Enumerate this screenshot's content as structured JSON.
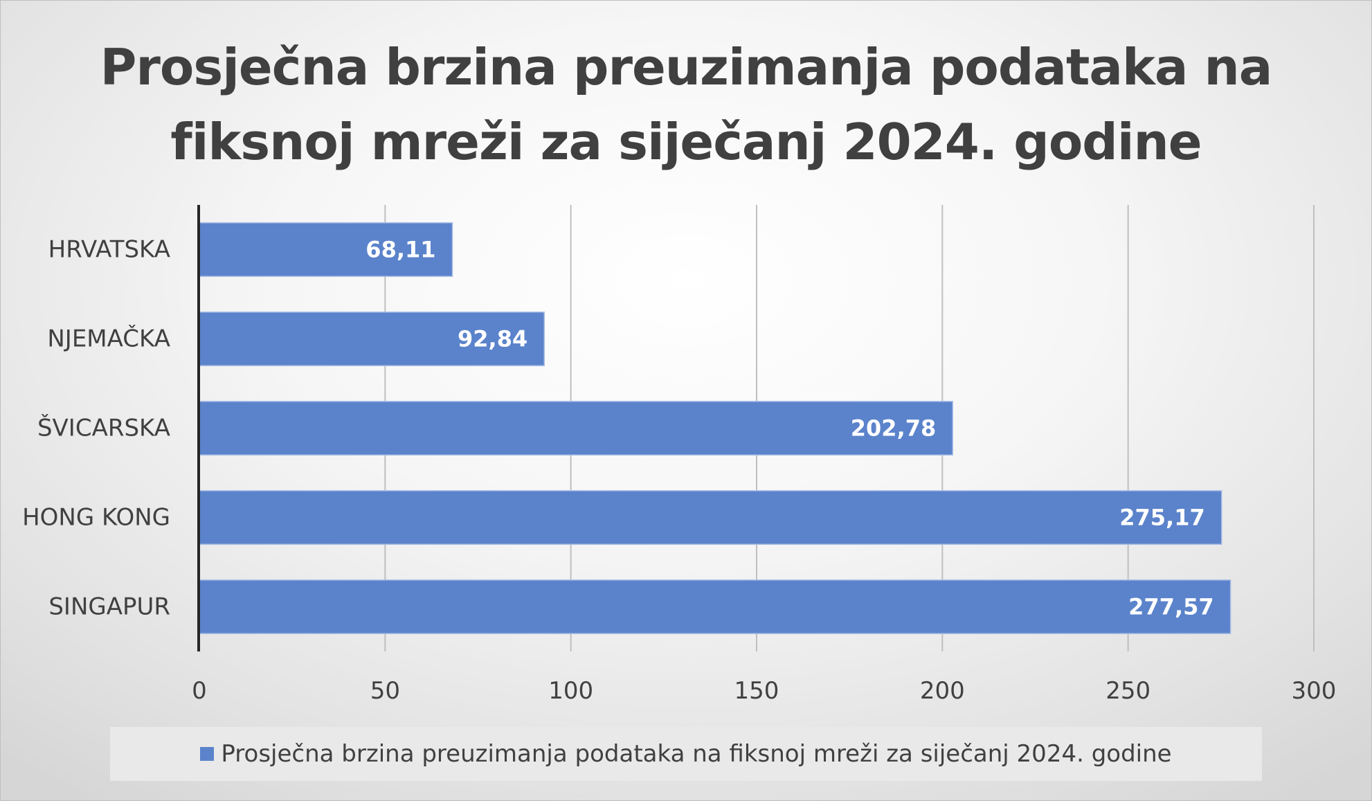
{
  "chart_data": {
    "type": "bar",
    "orientation": "horizontal",
    "title": "Prosječna brzina preuzimanja podataka na fiksnoj mreži za siječanj 2024. godine",
    "categories": [
      "HRVATSKA",
      "NJEMAČKA",
      "ŠVICARSKA",
      "HONG KONG",
      "SINGAPUR"
    ],
    "series": [
      {
        "name": "Prosječna brzina preuzimanja podataka na fiksnoj mreži za siječanj 2024. godine",
        "values": [
          68.11,
          92.84,
          202.78,
          275.17,
          277.57
        ],
        "labels": [
          "68,11",
          "92,84",
          "202,78",
          "275,17",
          "277,57"
        ]
      }
    ],
    "xlim": [
      0,
      300
    ],
    "xticks": [
      "0",
      "50",
      "100",
      "150",
      "200",
      "250",
      "300"
    ],
    "grid": true,
    "legend_position": "bottom",
    "colors": {
      "bar": "#5b83cb",
      "grid": "#bfbfbf",
      "axis": "#262626",
      "text": "#404040"
    }
  }
}
